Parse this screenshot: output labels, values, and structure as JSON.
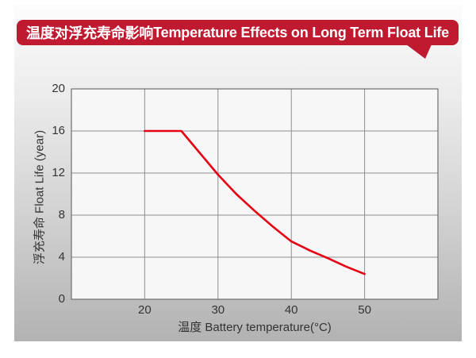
{
  "header": {
    "title_zh": "温度对浮充寿命影响",
    "title_en": "Temperature Effects on Long Term Float Life",
    "banner_color": "#c01a30"
  },
  "chart_data": {
    "type": "line",
    "title": "温度对浮充寿命影响Temperature Effects on Long Term Float Life",
    "xlabel": "温度  Battery temperature(°C)",
    "ylabel": "浮充寿命 Float Life (year)",
    "xlim": [
      10,
      60
    ],
    "ylim": [
      0,
      20
    ],
    "x_ticks": [
      20,
      30,
      40,
      50
    ],
    "y_ticks": [
      0,
      4,
      8,
      12,
      16,
      20
    ],
    "grid": true,
    "legend_position": "none",
    "plot_background": "#f7f7f7",
    "gridline_color": "#8f8f8f",
    "border_color": "#6f6f6f",
    "series": [
      {
        "name": "浮充寿命 Float Life",
        "color": "#e60012",
        "x": [
          20,
          25,
          30,
          32.5,
          35,
          37.5,
          40,
          42.5,
          45,
          47.5,
          50
        ],
        "y": [
          16,
          16,
          11.85,
          10.0,
          8.4,
          6.9,
          5.5,
          4.65,
          3.9,
          3.1,
          2.4
        ]
      }
    ]
  }
}
